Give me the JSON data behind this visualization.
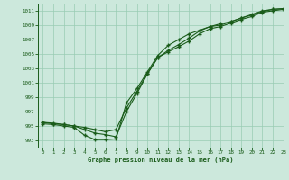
{
  "title": "Graphe pression niveau de la mer (hPa)",
  "bg_color": "#cce8dc",
  "line_color": "#1a5c1a",
  "grid_color": "#99ccb3",
  "xlim": [
    -0.5,
    23
  ],
  "ylim": [
    992.0,
    1012.0
  ],
  "yticks": [
    993,
    995,
    997,
    999,
    1001,
    1003,
    1005,
    1007,
    1009,
    1011
  ],
  "xticks": [
    0,
    1,
    2,
    3,
    4,
    5,
    6,
    7,
    8,
    9,
    10,
    11,
    12,
    13,
    14,
    15,
    16,
    17,
    18,
    19,
    20,
    21,
    22,
    23
  ],
  "curve1_x": [
    0,
    1,
    2,
    3,
    4,
    5,
    6,
    7,
    8,
    9,
    10,
    11,
    12,
    13,
    14,
    15,
    16,
    17,
    18,
    19,
    20,
    21,
    22,
    23
  ],
  "curve1_y": [
    995.3,
    995.2,
    995.0,
    994.8,
    993.7,
    993.1,
    993.1,
    993.2,
    998.2,
    1000.2,
    1002.5,
    1004.8,
    1006.2,
    1007.0,
    1007.8,
    1008.3,
    1008.8,
    1009.2,
    1009.5,
    1010.0,
    1010.5,
    1011.0,
    1011.2,
    1011.3
  ],
  "curve2_x": [
    0,
    1,
    2,
    3,
    4,
    5,
    6,
    7,
    8,
    9,
    10,
    11,
    12,
    13,
    14,
    15,
    16,
    17,
    18,
    19,
    20,
    21,
    22,
    23
  ],
  "curve2_y": [
    995.5,
    995.3,
    995.2,
    995.0,
    994.8,
    994.5,
    994.2,
    994.5,
    997.5,
    999.8,
    1002.3,
    1004.5,
    1005.5,
    1006.3,
    1007.2,
    1008.2,
    1008.8,
    1009.0,
    1009.5,
    1010.0,
    1010.4,
    1010.9,
    1011.2,
    1011.3
  ],
  "curve3_x": [
    0,
    1,
    2,
    3,
    4,
    5,
    6,
    7,
    8,
    9,
    10,
    11,
    12,
    13,
    14,
    15,
    16,
    17,
    18,
    19,
    20,
    21,
    22,
    23
  ],
  "curve3_y": [
    995.5,
    995.4,
    995.2,
    995.0,
    994.5,
    994.0,
    993.8,
    993.5,
    997.0,
    999.5,
    1002.2,
    1004.5,
    1005.3,
    1006.0,
    1006.8,
    1007.8,
    1008.5,
    1008.8,
    1009.3,
    1009.8,
    1010.2,
    1010.8,
    1011.0,
    1011.2
  ]
}
